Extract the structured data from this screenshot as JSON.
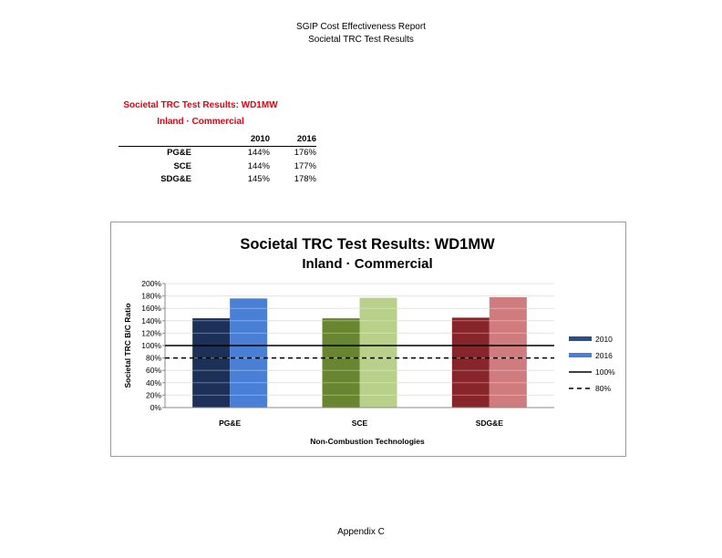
{
  "header": {
    "line1": "SGIP Cost Effectiveness Report",
    "line2": "Societal TRC Test Results"
  },
  "table": {
    "title": "Societal TRC Test Results:  WD1MW",
    "subtitle": "Inland · Commercial",
    "columns": [
      "2010",
      "2016"
    ],
    "rows": [
      {
        "label": "PG&E",
        "values": [
          "144%",
          "176%"
        ]
      },
      {
        "label": "SCE",
        "values": [
          "144%",
          "177%"
        ]
      },
      {
        "label": "SDG&E",
        "values": [
          "145%",
          "178%"
        ]
      }
    ]
  },
  "chart_data": {
    "type": "bar",
    "title": "Societal TRC Test Results:  WD1MW",
    "subtitle": "Inland · Commercial",
    "xlabel": "Non-Combustion Technologies",
    "ylabel": "Societal TRC B/C Ratio",
    "categories": [
      "PG&E",
      "SCE",
      "SDG&E"
    ],
    "series": [
      {
        "name": "2010",
        "values": [
          144,
          144,
          145
        ]
      },
      {
        "name": "2016",
        "values": [
          176,
          177,
          178
        ]
      }
    ],
    "ylim": [
      0,
      200
    ],
    "yticks": [
      "0%",
      "20%",
      "40%",
      "60%",
      "80%",
      "100%",
      "120%",
      "140%",
      "160%",
      "180%",
      "200%"
    ],
    "reference_lines": [
      {
        "name": "100%",
        "value": 100,
        "style": "solid"
      },
      {
        "name": "80%",
        "value": 80,
        "style": "dashed"
      }
    ],
    "bar_colors": {
      "2010": [
        "#1c3058",
        "#68852f",
        "#88252a"
      ],
      "2016": [
        "#4a7fd6",
        "#b8d08a",
        "#d07b7e"
      ]
    },
    "legend_colors": {
      "2010": "#2a4e8c",
      "2016": "#4a7fd6"
    },
    "legend_position": "right",
    "grid": true
  },
  "footer": "Appendix C"
}
